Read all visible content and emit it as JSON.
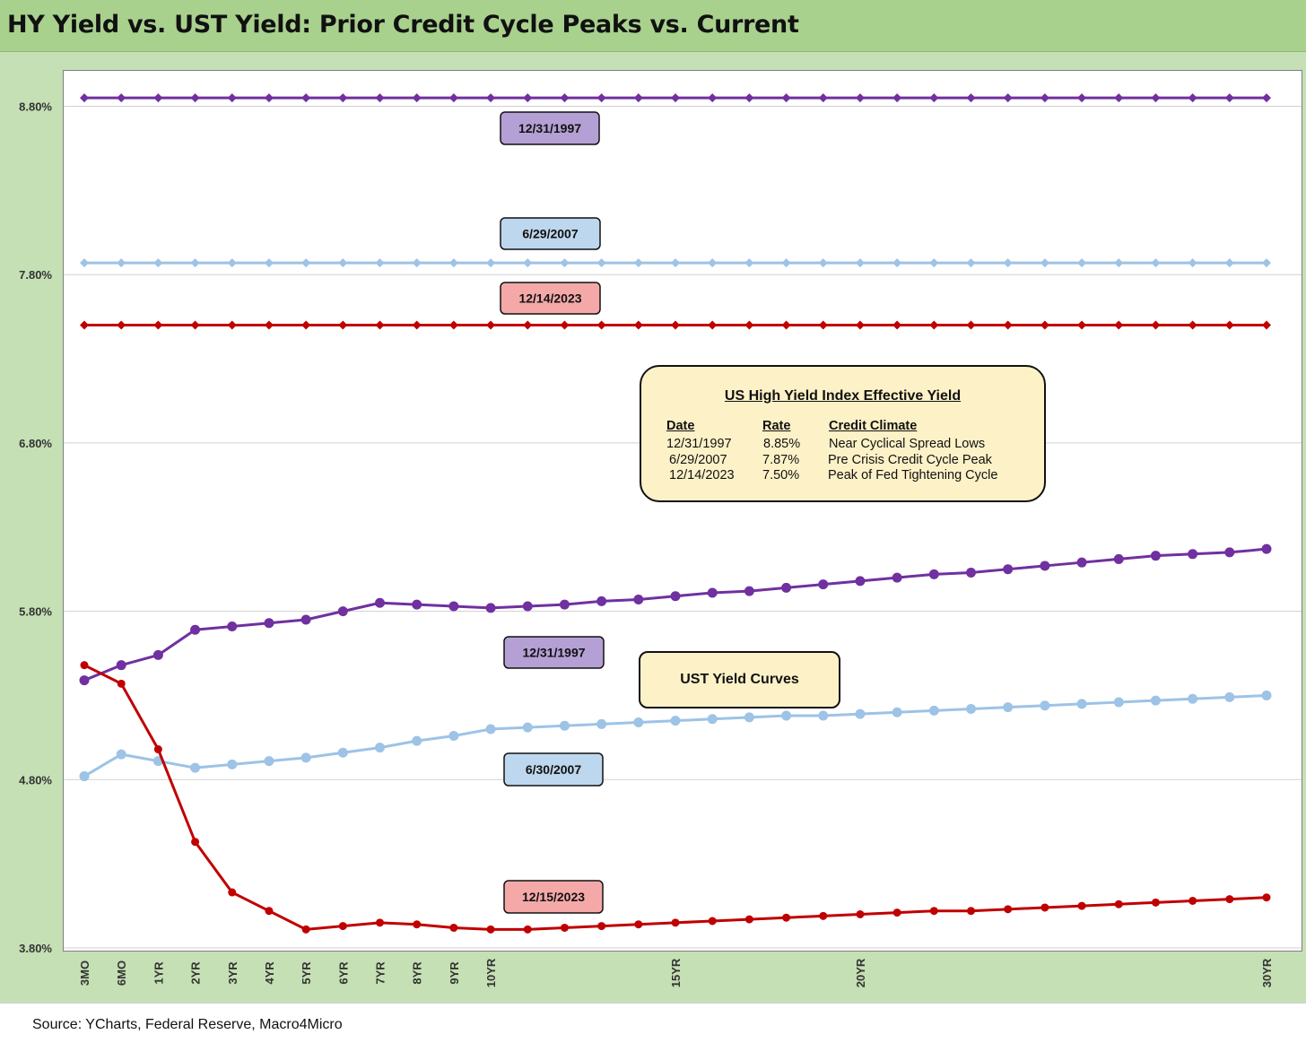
{
  "title": "HY Yield vs. UST Yield: Prior Credit Cycle Peaks vs. Current",
  "source": "Source:  YCharts, Federal Reserve, Macro4Micro",
  "legend_table": {
    "title": "US High Yield Index Effective Yield",
    "headers": [
      "Date",
      "Rate",
      "Credit Climate"
    ],
    "rows": [
      [
        "12/31/1997",
        "8.85%",
        "Near Cyclical Spread Lows"
      ],
      [
        "6/29/2007",
        "7.87%",
        "Pre Crisis Credit Cycle Peak"
      ],
      [
        "12/14/2023",
        "7.50%",
        "Peak of Fed Tightening Cycle"
      ]
    ]
  },
  "ust_box_label": "UST Yield Curves",
  "colors": {
    "purple": "#7030a0",
    "light_blue": "#9dc3e6",
    "red": "#c00000",
    "purple_label_bg": "#b4a0d4",
    "blue_label_bg": "#bdd7ee",
    "red_label_bg": "#f4a9a8"
  },
  "chart_data": {
    "type": "line",
    "x_tick_labels": [
      "3MO",
      "6MO",
      "1YR",
      "2YR",
      "3YR",
      "4YR",
      "5YR",
      "6YR",
      "7YR",
      "8YR",
      "9YR",
      "10YR",
      "",
      "",
      "",
      "",
      "15YR",
      "",
      "",
      "",
      "",
      "20YR",
      "",
      "",
      "",
      "",
      "",
      "",
      "",
      "",
      "",
      "",
      "30YR"
    ],
    "ylim": [
      3.8,
      9.0
    ],
    "y_ticks": [
      "3.80%",
      "4.80%",
      "5.80%",
      "6.80%",
      "7.80%",
      "8.80%"
    ],
    "y_tick_values": [
      3.8,
      4.8,
      5.8,
      6.8,
      7.8,
      8.8
    ],
    "grid": true,
    "series": [
      {
        "name": "12/31/1997",
        "kind": "HY",
        "color_key": "purple",
        "marker": "diamond",
        "values": [
          8.85,
          8.85,
          8.85,
          8.85,
          8.85,
          8.85,
          8.85,
          8.85,
          8.85,
          8.85,
          8.85,
          8.85,
          8.85,
          8.85,
          8.85,
          8.85,
          8.85,
          8.85,
          8.85,
          8.85,
          8.85,
          8.85,
          8.85,
          8.85,
          8.85,
          8.85,
          8.85,
          8.85,
          8.85,
          8.85,
          8.85,
          8.85,
          8.85
        ]
      },
      {
        "name": "6/29/2007",
        "kind": "HY",
        "color_key": "light_blue",
        "marker": "diamond",
        "values": [
          7.87,
          7.87,
          7.87,
          7.87,
          7.87,
          7.87,
          7.87,
          7.87,
          7.87,
          7.87,
          7.87,
          7.87,
          7.87,
          7.87,
          7.87,
          7.87,
          7.87,
          7.87,
          7.87,
          7.87,
          7.87,
          7.87,
          7.87,
          7.87,
          7.87,
          7.87,
          7.87,
          7.87,
          7.87,
          7.87,
          7.87,
          7.87,
          7.87
        ]
      },
      {
        "name": "12/14/2023",
        "kind": "HY",
        "color_key": "red",
        "marker": "diamond",
        "values": [
          7.5,
          7.5,
          7.5,
          7.5,
          7.5,
          7.5,
          7.5,
          7.5,
          7.5,
          7.5,
          7.5,
          7.5,
          7.5,
          7.5,
          7.5,
          7.5,
          7.5,
          7.5,
          7.5,
          7.5,
          7.5,
          7.5,
          7.5,
          7.5,
          7.5,
          7.5,
          7.5,
          7.5,
          7.5,
          7.5,
          7.5,
          7.5,
          7.5
        ]
      },
      {
        "name": "12/31/1997",
        "kind": "UST",
        "color_key": "purple",
        "marker": "circle",
        "values": [
          5.39,
          5.48,
          5.54,
          5.69,
          5.71,
          5.73,
          5.75,
          5.8,
          5.85,
          5.84,
          5.83,
          5.82,
          5.83,
          5.84,
          5.86,
          5.87,
          5.89,
          5.91,
          5.92,
          5.94,
          5.96,
          5.98,
          6.0,
          6.02,
          6.03,
          6.05,
          6.07,
          6.09,
          6.11,
          6.13,
          6.14,
          6.15,
          6.17
        ]
      },
      {
        "name": "6/30/2007",
        "kind": "UST",
        "color_key": "light_blue",
        "marker": "circle",
        "values": [
          4.82,
          4.95,
          4.91,
          4.87,
          4.89,
          4.91,
          4.93,
          4.96,
          4.99,
          5.03,
          5.06,
          5.1,
          5.11,
          5.12,
          5.13,
          5.14,
          5.15,
          5.16,
          5.17,
          5.18,
          5.18,
          5.19,
          5.2,
          5.21,
          5.22,
          5.23,
          5.24,
          5.25,
          5.26,
          5.27,
          5.28,
          5.29,
          5.3
        ]
      },
      {
        "name": "12/15/2023",
        "kind": "UST",
        "color_key": "red",
        "marker": "circle",
        "values": [
          5.48,
          5.37,
          4.98,
          4.43,
          4.13,
          4.02,
          3.91,
          3.93,
          3.95,
          3.94,
          3.92,
          3.91,
          3.91,
          3.92,
          3.93,
          3.94,
          3.95,
          3.96,
          3.97,
          3.98,
          3.99,
          4.0,
          4.01,
          4.02,
          4.02,
          4.03,
          4.04,
          4.05,
          4.06,
          4.07,
          4.08,
          4.09,
          4.1
        ]
      }
    ],
    "callouts": [
      {
        "text": "12/31/1997",
        "color_key": "purple_label_bg"
      },
      {
        "text": "6/29/2007",
        "color_key": "blue_label_bg"
      },
      {
        "text": "12/14/2023",
        "color_key": "red_label_bg"
      },
      {
        "text": "12/31/1997",
        "color_key": "purple_label_bg"
      },
      {
        "text": "6/30/2007",
        "color_key": "blue_label_bg"
      },
      {
        "text": "12/15/2023",
        "color_key": "red_label_bg"
      }
    ]
  }
}
